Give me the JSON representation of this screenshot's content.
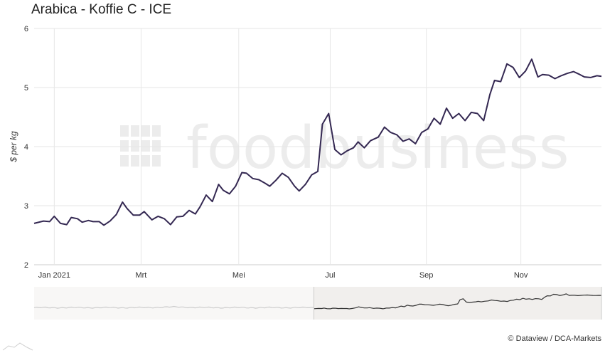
{
  "title": "Arabica - Koffie C - ICE",
  "credit": "© Dataview / DCA-Markets",
  "watermark": "foodbusiness",
  "colors": {
    "line": "#342852",
    "grid": "#e6e6e6",
    "navigator_line_inactive": "#cccccc",
    "navigator_line_active": "#333333",
    "navigator_selection": "#f1efed"
  },
  "chart_data": {
    "type": "line",
    "title": "Arabica - Koffie C - ICE",
    "xlabel": "",
    "ylabel": "$ per kg",
    "ylim": [
      2,
      6
    ],
    "yticks": [
      2,
      3,
      4,
      5,
      6
    ],
    "xlim": [
      "2020-12-22",
      "2021-12-23"
    ],
    "xticks": [
      {
        "date": "2021-01-04",
        "label": "Jan 2021"
      },
      {
        "date": "2021-03-01",
        "label": "Mrt"
      },
      {
        "date": "2021-05-03",
        "label": "Mei"
      },
      {
        "date": "2021-07-01",
        "label": "Jul"
      },
      {
        "date": "2021-09-01",
        "label": "Sep"
      },
      {
        "date": "2021-11-01",
        "label": "Nov"
      }
    ],
    "grid": true,
    "series": [
      {
        "x": [
          "2020-12-22",
          "2020-12-28",
          "2021-01-01",
          "2021-01-04",
          "2021-01-08",
          "2021-01-12",
          "2021-01-15",
          "2021-01-19",
          "2021-01-22",
          "2021-01-26",
          "2021-01-29",
          "2021-02-02",
          "2021-02-05",
          "2021-02-09",
          "2021-02-13",
          "2021-02-17",
          "2021-02-20",
          "2021-02-24",
          "2021-02-28",
          "2021-03-03",
          "2021-03-08",
          "2021-03-12",
          "2021-03-16",
          "2021-03-20",
          "2021-03-24",
          "2021-03-28",
          "2021-04-01",
          "2021-04-05",
          "2021-04-08",
          "2021-04-12",
          "2021-04-16",
          "2021-04-20",
          "2021-04-23",
          "2021-04-27",
          "2021-05-01",
          "2021-05-05",
          "2021-05-08",
          "2021-05-12",
          "2021-05-16",
          "2021-05-20",
          "2021-05-23",
          "2021-05-27",
          "2021-05-31",
          "2021-06-04",
          "2021-06-08",
          "2021-06-11",
          "2021-06-15",
          "2021-06-19",
          "2021-06-23",
          "2021-06-26",
          "2021-06-30",
          "2021-07-04",
          "2021-07-08",
          "2021-07-12",
          "2021-07-16",
          "2021-07-19",
          "2021-07-23",
          "2021-07-27",
          "2021-08-01",
          "2021-08-05",
          "2021-08-09",
          "2021-08-13",
          "2021-08-17",
          "2021-08-21",
          "2021-08-25",
          "2021-08-29",
          "2021-09-02",
          "2021-09-06",
          "2021-09-10",
          "2021-09-14",
          "2021-09-18",
          "2021-09-22",
          "2021-09-26",
          "2021-09-30",
          "2021-10-04",
          "2021-10-08",
          "2021-10-12",
          "2021-10-15",
          "2021-10-19",
          "2021-10-23",
          "2021-10-27",
          "2021-10-31",
          "2021-11-04",
          "2021-11-08",
          "2021-11-12",
          "2021-11-15",
          "2021-11-19",
          "2021-11-23",
          "2021-11-27",
          "2021-12-01",
          "2021-12-05",
          "2021-12-09",
          "2021-12-12",
          "2021-12-16",
          "2021-12-20",
          "2021-12-23"
        ],
        "y": [
          2.7,
          2.74,
          2.73,
          2.82,
          2.7,
          2.68,
          2.8,
          2.78,
          2.72,
          2.75,
          2.73,
          2.73,
          2.67,
          2.74,
          2.85,
          3.06,
          2.95,
          2.84,
          2.84,
          2.9,
          2.76,
          2.82,
          2.78,
          2.68,
          2.81,
          2.82,
          2.92,
          2.86,
          2.98,
          3.18,
          3.07,
          3.36,
          3.26,
          3.2,
          3.33,
          3.56,
          3.55,
          3.46,
          3.44,
          3.38,
          3.33,
          3.43,
          3.55,
          3.48,
          3.33,
          3.25,
          3.36,
          3.52,
          3.58,
          4.38,
          4.56,
          3.95,
          3.86,
          3.93,
          3.98,
          4.08,
          3.98,
          4.1,
          4.16,
          4.33,
          4.24,
          4.2,
          4.09,
          4.13,
          4.05,
          4.24,
          4.3,
          4.48,
          4.38,
          4.65,
          4.48,
          4.56,
          4.44,
          4.58,
          4.56,
          4.44,
          4.88,
          5.12,
          5.1,
          5.4,
          5.34,
          5.17,
          5.28,
          5.48,
          5.18,
          5.22,
          5.21,
          5.15,
          5.2,
          5.24,
          5.27,
          5.22,
          5.18,
          5.17,
          5.2,
          5.19
        ]
      }
    ],
    "navigator": {
      "range": [
        "2020-01-01",
        "2021-12-23"
      ],
      "selection": [
        "2020-12-22",
        "2021-12-23"
      ]
    }
  }
}
